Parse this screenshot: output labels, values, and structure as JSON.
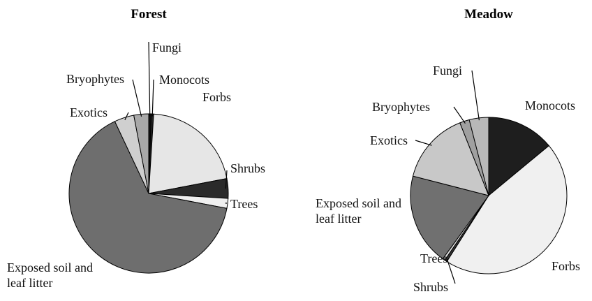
{
  "chart_data": [
    {
      "type": "pie",
      "title": "Forest",
      "categories": [
        "Fungi",
        "Monocots",
        "Forbs",
        "Shrubs",
        "Trees",
        "Exposed soil and leaf litter",
        "Exotics",
        "Bryophytes"
      ],
      "values": [
        0.5,
        0.5,
        21,
        4,
        2,
        65,
        4,
        3
      ],
      "colors": [
        "#111111",
        "#222222",
        "#e6e6e6",
        "#2a2a2a",
        "#efefef",
        "#6e6e6e",
        "#cfcfcf",
        "#a8a8a8"
      ]
    },
    {
      "type": "pie",
      "title": "Meadow",
      "categories": [
        "Monocots",
        "Forbs",
        "Shrubs",
        "Trees",
        "Exposed soil and leaf litter",
        "Exotics",
        "Bryophytes",
        "Fungi"
      ],
      "values": [
        14,
        45,
        0.5,
        0.5,
        19,
        15,
        2,
        4
      ],
      "colors": [
        "#1e1e1e",
        "#f0f0f0",
        "#333333",
        "#dddddd",
        "#707070",
        "#c8c8c8",
        "#a0a0a0",
        "#b8b8b8"
      ]
    }
  ]
}
